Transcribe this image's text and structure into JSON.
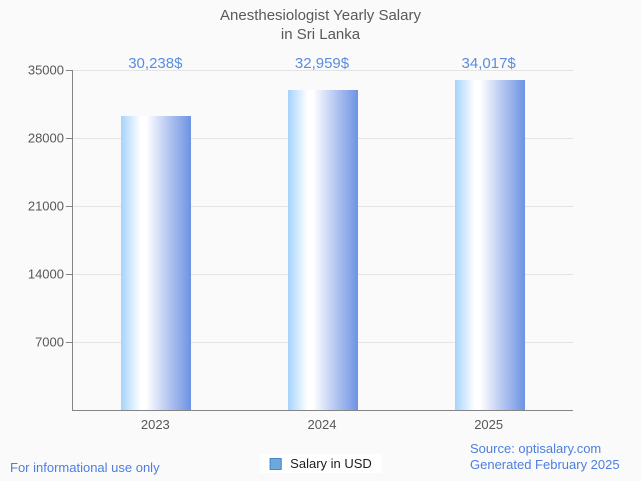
{
  "title": {
    "line1": "Anesthesiologist Yearly Salary",
    "line2": "in Sri Lanka"
  },
  "chart_data": {
    "type": "bar",
    "categories": [
      "2023",
      "2024",
      "2025"
    ],
    "series": [
      {
        "name": "Salary in USD",
        "values": [
          30238,
          32959,
          34017
        ]
      }
    ],
    "value_labels": [
      "30,238$",
      "32,959$",
      "34,017$"
    ],
    "title": "Anesthesiologist Yearly Salary in Sri Lanka",
    "xlabel": "",
    "ylabel": "",
    "ylim": [
      0,
      35000
    ],
    "yticks": [
      7000,
      14000,
      21000,
      28000,
      35000
    ],
    "grid": "horizontal",
    "legend_position": "bottom"
  },
  "legend": {
    "label": "Salary in USD"
  },
  "footer": {
    "left": "For informational use only",
    "source": "Source: optisalary.com",
    "generated": "Generated February 2025"
  },
  "colors": {
    "background": "#fafafa",
    "axis": "#848484",
    "grid": "#e4e4e4",
    "text": "#57585a",
    "title_text": "#58595b",
    "value_label_blue": "#5b8ce0",
    "footer_blue": "#4d7ee0",
    "bar_gradient": [
      "#a5d3fc",
      "#ffffff",
      "#b9c9f1",
      "#6d93e4"
    ],
    "legend_fill": "#6fa8dc",
    "legend_border": "#4a86c8"
  }
}
